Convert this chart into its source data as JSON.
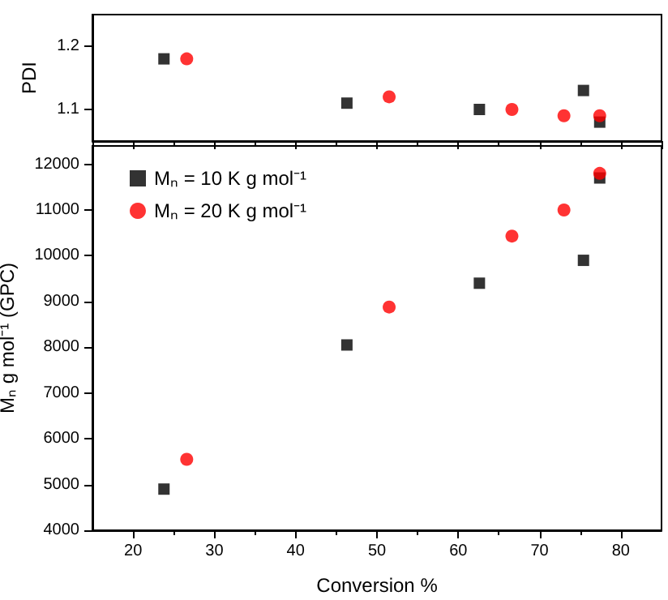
{
  "chart_data": [
    {
      "type": "scatter",
      "ylabel": "PDI",
      "xlim": [
        15,
        85
      ],
      "ylim": [
        1.05,
        1.25
      ],
      "yticks": [
        1.1,
        1.2
      ],
      "tick_labels": "y",
      "grid": false,
      "legend": false,
      "series": [
        {
          "color": "#000000",
          "marker": "square",
          "x": [
            23.8,
            46.3,
            62.6,
            75.4,
            77.4
          ],
          "values": [
            1.18,
            1.11,
            1.1,
            1.13,
            1.08
          ]
        },
        {
          "color": "#ff0000",
          "marker": "circle",
          "x": [
            26.6,
            51.5,
            66.6,
            73,
            77.4
          ],
          "values": [
            1.18,
            1.12,
            1.1,
            1.09,
            1.09
          ]
        }
      ]
    },
    {
      "type": "scatter",
      "xlabel": "Conversion %",
      "ylabel": "Mₙ g mol⁻¹ (GPC)",
      "xlim": [
        15,
        85
      ],
      "xticks": [
        20,
        30,
        40,
        50,
        60,
        70,
        80
      ],
      "ylim": [
        4000,
        12400
      ],
      "yticks": [
        4000,
        5000,
        6000,
        7000,
        8000,
        9000,
        10000,
        11000,
        12000
      ],
      "grid": false,
      "legend": "top left",
      "series": [
        {
          "name": "Mₙ = 10 K g mol⁻¹",
          "color": "#000000",
          "marker": "square",
          "x": [
            23.8,
            46.3,
            62.6,
            75.4,
            77.4
          ],
          "values": [
            4900,
            8050,
            9400,
            9900,
            11700
          ]
        },
        {
          "name": "Mₙ = 20 K g mol⁻¹",
          "color": "#ff0000",
          "marker": "circle",
          "x": [
            26.6,
            51.5,
            66.6,
            73,
            77.4
          ],
          "values": [
            5550,
            8880,
            10430,
            11000,
            11800
          ]
        }
      ]
    }
  ]
}
